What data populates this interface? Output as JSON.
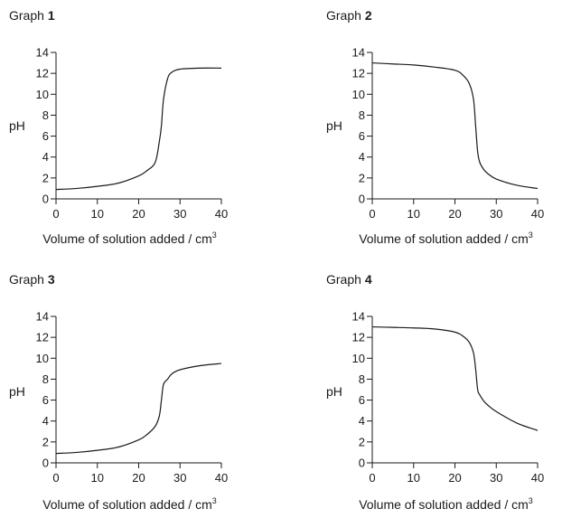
{
  "chart_data": [
    {
      "type": "line",
      "title_prefix": "Graph",
      "title_number": "1",
      "xlabel": "Volume of solution added / cm",
      "xlabel_superscript": "3",
      "ylabel": "pH",
      "xlim": [
        0,
        40
      ],
      "ylim": [
        0,
        14
      ],
      "x_ticks": [
        0,
        10,
        20,
        30,
        40
      ],
      "y_ticks": [
        0,
        2,
        4,
        6,
        8,
        10,
        12,
        14
      ],
      "grid": false,
      "series": [
        {
          "x": [
            0,
            5,
            10,
            15,
            20,
            22,
            24,
            25,
            25.5,
            26,
            27,
            28,
            30,
            35,
            40
          ],
          "y": [
            0.9,
            1.0,
            1.2,
            1.5,
            2.2,
            2.7,
            3.5,
            5.5,
            7.0,
            9.5,
            11.5,
            12.1,
            12.4,
            12.5,
            12.5
          ]
        }
      ]
    },
    {
      "type": "line",
      "title_prefix": "Graph",
      "title_number": "2",
      "xlabel": "Volume of solution added / cm",
      "xlabel_superscript": "3",
      "ylabel": "pH",
      "xlim": [
        0,
        40
      ],
      "ylim": [
        0,
        14
      ],
      "x_ticks": [
        0,
        10,
        20,
        30,
        40
      ],
      "y_ticks": [
        0,
        2,
        4,
        6,
        8,
        10,
        12,
        14
      ],
      "grid": false,
      "series": [
        {
          "x": [
            0,
            5,
            10,
            15,
            20,
            22,
            23.5,
            24.5,
            25,
            25.5,
            26,
            27,
            28,
            30,
            35,
            40
          ],
          "y": [
            13.0,
            12.9,
            12.8,
            12.6,
            12.3,
            11.8,
            11.0,
            9.5,
            7.0,
            4.5,
            3.5,
            2.8,
            2.4,
            1.9,
            1.3,
            1.0
          ]
        }
      ]
    },
    {
      "type": "line",
      "title_prefix": "Graph",
      "title_number": "3",
      "xlabel": "Volume of solution added / cm",
      "xlabel_superscript": "3",
      "ylabel": "pH",
      "xlim": [
        0,
        40
      ],
      "ylim": [
        0,
        14
      ],
      "x_ticks": [
        0,
        10,
        20,
        30,
        40
      ],
      "y_ticks": [
        0,
        2,
        4,
        6,
        8,
        10,
        12,
        14
      ],
      "grid": false,
      "series": [
        {
          "x": [
            0,
            5,
            10,
            15,
            20,
            22,
            24,
            25,
            25.5,
            26,
            27,
            28,
            30,
            35,
            40
          ],
          "y": [
            0.9,
            1.0,
            1.2,
            1.5,
            2.2,
            2.7,
            3.5,
            4.5,
            6.0,
            7.5,
            8.0,
            8.5,
            8.9,
            9.3,
            9.5
          ]
        }
      ]
    },
    {
      "type": "line",
      "title_prefix": "Graph",
      "title_number": "4",
      "xlabel": "Volume of solution added / cm",
      "xlabel_superscript": "3",
      "ylabel": "pH",
      "xlim": [
        0,
        40
      ],
      "ylim": [
        0,
        14
      ],
      "x_ticks": [
        0,
        10,
        20,
        30,
        40
      ],
      "y_ticks": [
        0,
        2,
        4,
        6,
        8,
        10,
        12,
        14
      ],
      "grid": false,
      "series": [
        {
          "x": [
            0,
            5,
            10,
            15,
            20,
            22,
            23.5,
            24.5,
            25,
            25.5,
            26,
            27,
            28,
            30,
            35,
            40
          ],
          "y": [
            13.0,
            12.95,
            12.9,
            12.8,
            12.5,
            12.1,
            11.5,
            10.5,
            9.0,
            7.0,
            6.5,
            5.9,
            5.5,
            4.9,
            3.8,
            3.1
          ]
        }
      ]
    }
  ]
}
